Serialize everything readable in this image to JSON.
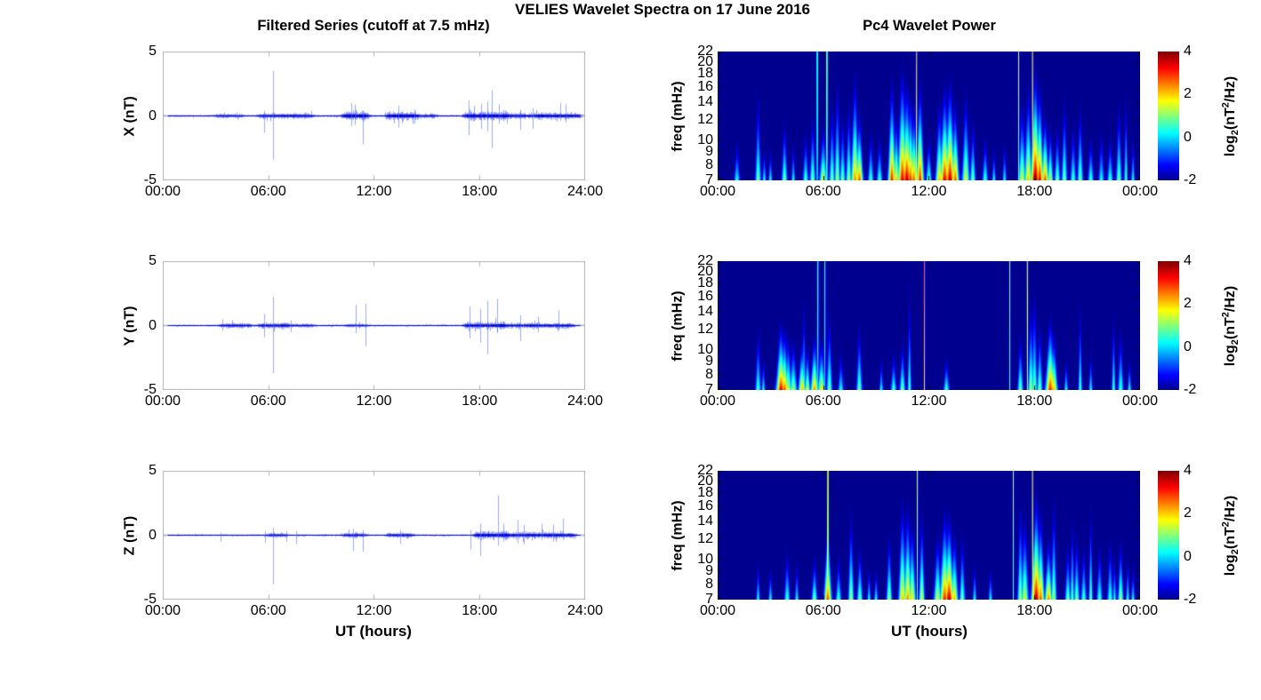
{
  "figure": {
    "title": "VELIES Wavelet Spectra on 17 June 2016",
    "left_title": "Filtered Series (cutoff at 7.5 mHz)",
    "right_title": "Pc4 Wavelet Power",
    "xlabel": "UT (hours)",
    "background": "#ffffff",
    "frame_color": "#b3b3b3",
    "tick_color": "#000000"
  },
  "colorbar": {
    "ticks": [
      "4",
      "2",
      "0",
      "-2"
    ],
    "tick_values": [
      4,
      2,
      0,
      -2
    ],
    "range": [
      -2,
      4
    ],
    "colormap": "jet",
    "label_parts": {
      "pre": "log",
      "sub": "2",
      "mid": "(nT",
      "sup": "2",
      "post": "/Hz)"
    }
  },
  "chart_data": [
    {
      "id": "ts-x",
      "type": "line",
      "row": 0,
      "ylabel": "X (nT)",
      "ylim": [
        -5,
        5
      ],
      "yticks": [
        "5",
        "0",
        "-5"
      ],
      "xticks": [
        "00:00",
        "06:00",
        "12:00",
        "18:00",
        "24:00"
      ],
      "x_range_hours": [
        0,
        24
      ],
      "line_color": "#0000ff",
      "noise_base": 0.07,
      "seed": 11,
      "noise_bursts": [
        [
          3.0,
          4.5,
          0.1
        ],
        [
          5.5,
          8.5,
          0.16
        ],
        [
          10.3,
          11.6,
          0.3
        ],
        [
          12.8,
          14.5,
          0.26
        ],
        [
          14.8,
          15.5,
          0.12
        ],
        [
          17.2,
          19.5,
          0.3
        ],
        [
          19.5,
          21.5,
          0.17
        ],
        [
          21.5,
          23.7,
          0.21
        ]
      ],
      "spikes": [
        [
          5.75,
          0.4,
          -1.3
        ],
        [
          6.25,
          3.5,
          -3.4
        ],
        [
          10.7,
          1.0,
          -0.8
        ],
        [
          10.9,
          0.9,
          -0.7
        ],
        [
          11.35,
          0.4,
          -2.2
        ],
        [
          13.4,
          0.8,
          -0.9
        ],
        [
          14.3,
          0.5,
          -0.6
        ],
        [
          17.4,
          1.2,
          -1.5
        ],
        [
          18.1,
          0.9,
          -1.0
        ],
        [
          18.45,
          1.1,
          -1.2
        ],
        [
          18.7,
          2.0,
          -2.5
        ],
        [
          19.1,
          0.9,
          -0.6
        ],
        [
          20.3,
          0.5,
          -1.1
        ],
        [
          21.0,
          0.6,
          -1.0
        ],
        [
          22.6,
          1.0,
          -0.4
        ],
        [
          22.9,
          0.9,
          -0.5
        ]
      ]
    },
    {
      "id": "spec-x",
      "type": "heatmap",
      "row": 0,
      "ylabel": "freq (mHz)",
      "yscale": "log",
      "ylim_mhz": [
        7,
        22
      ],
      "ytick_values": [
        22,
        20,
        18,
        16,
        14,
        12,
        10,
        9,
        8,
        7
      ],
      "xticks": [
        "00:00",
        "06:00",
        "12:00",
        "18:00",
        "00:00"
      ],
      "x_range_hours": [
        0,
        24
      ],
      "clim": [
        -2,
        4
      ],
      "colormap": "jet",
      "background": "#00008f",
      "events": [
        [
          1.1,
          0.35,
          0.4,
          3
        ],
        [
          2.3,
          0.78,
          0.5,
          3
        ],
        [
          2.65,
          0.3,
          0.4,
          2
        ],
        [
          3.0,
          0.3,
          0.4,
          2
        ],
        [
          3.8,
          0.55,
          0.5,
          3
        ],
        [
          4.3,
          0.35,
          0.4,
          2
        ],
        [
          5.0,
          0.45,
          0.45,
          3
        ],
        [
          5.4,
          0.6,
          0.5,
          3
        ],
        [
          6.0,
          0.5,
          0.6,
          4
        ],
        [
          6.5,
          0.7,
          0.5,
          3
        ],
        [
          6.8,
          0.9,
          0.55,
          3
        ],
        [
          7.1,
          0.6,
          0.5,
          3
        ],
        [
          7.45,
          0.7,
          0.55,
          3
        ],
        [
          7.8,
          0.95,
          0.75,
          4
        ],
        [
          8.05,
          0.6,
          0.8,
          4
        ],
        [
          8.7,
          0.45,
          0.45,
          3
        ],
        [
          9.2,
          0.4,
          0.45,
          3
        ],
        [
          9.9,
          0.9,
          0.85,
          4
        ],
        [
          10.15,
          0.6,
          0.7,
          3
        ],
        [
          10.5,
          1.0,
          0.9,
          5
        ],
        [
          10.75,
          0.85,
          0.95,
          5
        ],
        [
          10.95,
          0.75,
          0.85,
          4
        ],
        [
          11.15,
          0.65,
          0.8,
          4
        ],
        [
          11.5,
          0.9,
          0.85,
          4
        ],
        [
          12.0,
          0.4,
          0.5,
          3
        ],
        [
          12.6,
          0.7,
          0.7,
          4
        ],
        [
          12.9,
          0.85,
          0.9,
          5
        ],
        [
          13.2,
          0.9,
          0.95,
          5
        ],
        [
          13.5,
          0.7,
          0.8,
          4
        ],
        [
          14.1,
          0.8,
          0.6,
          4
        ],
        [
          14.5,
          0.55,
          0.5,
          3
        ],
        [
          15.2,
          0.4,
          0.45,
          3
        ],
        [
          15.7,
          0.3,
          0.4,
          2
        ],
        [
          16.3,
          0.35,
          0.4,
          2
        ],
        [
          17.3,
          0.7,
          0.6,
          4
        ],
        [
          17.65,
          0.85,
          0.7,
          4
        ],
        [
          18.05,
          1.0,
          1.0,
          5
        ],
        [
          18.3,
          0.85,
          0.9,
          4
        ],
        [
          18.6,
          0.6,
          0.8,
          4
        ],
        [
          18.9,
          0.5,
          0.6,
          3
        ],
        [
          19.3,
          0.5,
          0.5,
          3
        ],
        [
          19.7,
          0.75,
          0.5,
          3
        ],
        [
          20.2,
          0.5,
          0.45,
          3
        ],
        [
          20.6,
          0.7,
          0.5,
          3
        ],
        [
          21.2,
          0.4,
          0.45,
          3
        ],
        [
          21.8,
          0.45,
          0.4,
          3
        ],
        [
          22.3,
          0.4,
          0.45,
          3
        ],
        [
          22.8,
          0.7,
          0.5,
          3
        ],
        [
          23.2,
          0.8,
          0.45,
          2
        ],
        [
          23.6,
          0.4,
          0.4,
          2
        ]
      ],
      "vlines": [
        [
          5.66,
          0.6
        ],
        [
          6.21,
          0.7
        ],
        [
          11.3,
          0.75
        ],
        [
          17.1,
          0.6
        ],
        [
          17.9,
          0.85
        ]
      ]
    },
    {
      "id": "ts-y",
      "type": "line",
      "row": 1,
      "ylabel": "Y (nT)",
      "ylim": [
        -5,
        5
      ],
      "yticks": [
        "5",
        "0",
        "-5"
      ],
      "xticks": [
        "00:00",
        "06:00",
        "12:00",
        "18:00",
        "24:00"
      ],
      "x_range_hours": [
        0,
        24
      ],
      "line_color": "#0000ff",
      "noise_base": 0.06,
      "seed": 22,
      "noise_bursts": [
        [
          3.3,
          5.0,
          0.15
        ],
        [
          5.5,
          7.0,
          0.17
        ],
        [
          7.0,
          8.5,
          0.1
        ],
        [
          10.5,
          11.6,
          0.1
        ],
        [
          17.2,
          19.3,
          0.21
        ],
        [
          19.3,
          21.0,
          0.15
        ],
        [
          21.0,
          23.3,
          0.17
        ]
      ],
      "spikes": [
        [
          3.4,
          0.5,
          -0.4
        ],
        [
          5.75,
          0.9,
          -0.9
        ],
        [
          6.25,
          2.2,
          -3.7
        ],
        [
          7.3,
          0.4,
          -0.5
        ],
        [
          10.95,
          1.6,
          -0.6
        ],
        [
          11.5,
          1.7,
          -1.6
        ],
        [
          17.45,
          1.5,
          -1.0
        ],
        [
          18.05,
          1.3,
          -1.3
        ],
        [
          18.45,
          1.9,
          -2.2
        ],
        [
          19.0,
          2.1,
          -0.5
        ],
        [
          20.3,
          0.8,
          -1.2
        ],
        [
          21.3,
          0.7,
          -0.5
        ],
        [
          22.5,
          1.2,
          -0.4
        ]
      ]
    },
    {
      "id": "spec-y",
      "type": "heatmap",
      "row": 1,
      "ylabel": "freq (mHz)",
      "yscale": "log",
      "ylim_mhz": [
        7,
        22
      ],
      "ytick_values": [
        22,
        20,
        18,
        16,
        14,
        12,
        10,
        9,
        8,
        7
      ],
      "xticks": [
        "00:00",
        "06:00",
        "12:00",
        "18:00",
        "00:00"
      ],
      "x_range_hours": [
        0,
        24
      ],
      "clim": [
        -2,
        4
      ],
      "colormap": "jet",
      "background": "#00008f",
      "events": [
        [
          2.3,
          0.55,
          0.45,
          3
        ],
        [
          2.6,
          0.3,
          0.4,
          2
        ],
        [
          3.6,
          0.6,
          0.9,
          5
        ],
        [
          3.8,
          0.55,
          0.8,
          4
        ],
        [
          4.0,
          0.5,
          0.6,
          4
        ],
        [
          4.3,
          0.45,
          0.55,
          4
        ],
        [
          4.8,
          0.45,
          0.7,
          4
        ],
        [
          4.9,
          0.85,
          0.45,
          2
        ],
        [
          5.1,
          0.4,
          0.6,
          3
        ],
        [
          5.5,
          0.5,
          0.75,
          4
        ],
        [
          5.9,
          0.45,
          0.65,
          4
        ],
        [
          6.35,
          0.7,
          0.5,
          3
        ],
        [
          7.0,
          0.35,
          0.4,
          3
        ],
        [
          8.05,
          0.6,
          0.5,
          3
        ],
        [
          9.3,
          0.3,
          0.4,
          2
        ],
        [
          10.0,
          0.35,
          0.45,
          3
        ],
        [
          10.5,
          0.45,
          0.5,
          3
        ],
        [
          10.9,
          0.9,
          0.45,
          2
        ],
        [
          13.0,
          0.3,
          0.45,
          3
        ],
        [
          17.2,
          0.5,
          0.5,
          3
        ],
        [
          17.8,
          0.8,
          0.55,
          3
        ],
        [
          18.0,
          0.9,
          0.5,
          3
        ],
        [
          18.3,
          0.6,
          0.5,
          3
        ],
        [
          18.9,
          0.65,
          0.85,
          5
        ],
        [
          19.1,
          0.5,
          0.7,
          4
        ],
        [
          19.8,
          0.3,
          0.4,
          2
        ],
        [
          20.6,
          0.8,
          0.45,
          2
        ],
        [
          21.2,
          0.35,
          0.4,
          2
        ],
        [
          22.5,
          0.7,
          0.45,
          2
        ],
        [
          22.9,
          0.55,
          0.45,
          3
        ],
        [
          23.4,
          0.3,
          0.4,
          2
        ]
      ],
      "vlines": [
        [
          5.7,
          0.5
        ],
        [
          6.1,
          0.45
        ],
        [
          11.75,
          0.8
        ],
        [
          16.6,
          0.55
        ],
        [
          17.6,
          0.7
        ]
      ]
    },
    {
      "id": "ts-z",
      "type": "line",
      "row": 2,
      "ylabel": "Z (nT)",
      "ylim": [
        -5,
        5
      ],
      "yticks": [
        "5",
        "0",
        "-5"
      ],
      "xticks": [
        "00:00",
        "06:00",
        "12:00",
        "18:00",
        "24:00"
      ],
      "x_range_hours": [
        0,
        24
      ],
      "line_color": "#0000ff",
      "noise_base": 0.06,
      "seed": 33,
      "noise_bursts": [
        [
          6.0,
          7.0,
          0.12
        ],
        [
          10.3,
          11.5,
          0.15
        ],
        [
          12.8,
          14.2,
          0.15
        ],
        [
          17.8,
          19.5,
          0.25
        ],
        [
          19.5,
          23.4,
          0.21
        ]
      ],
      "spikes": [
        [
          3.3,
          0.2,
          -0.5
        ],
        [
          5.8,
          0.3,
          -0.6
        ],
        [
          6.25,
          0.6,
          -3.8
        ],
        [
          7.0,
          0.3,
          -0.5
        ],
        [
          7.6,
          0.3,
          -0.7
        ],
        [
          10.8,
          0.5,
          -1.2
        ],
        [
          11.35,
          0.4,
          -1.3
        ],
        [
          13.5,
          0.4,
          -0.7
        ],
        [
          17.5,
          0.4,
          -1.1
        ],
        [
          18.05,
          0.9,
          -1.6
        ],
        [
          19.05,
          3.1,
          -0.8
        ],
        [
          19.35,
          0.9,
          -0.5
        ],
        [
          20.15,
          1.2,
          -0.6
        ],
        [
          20.5,
          0.8,
          -0.7
        ],
        [
          21.5,
          0.9,
          -0.4
        ],
        [
          22.2,
          0.8,
          -0.5
        ],
        [
          22.75,
          1.3,
          -0.4
        ]
      ]
    },
    {
      "id": "spec-z",
      "type": "heatmap",
      "row": 2,
      "ylabel": "freq (mHz)",
      "yscale": "log",
      "ylim_mhz": [
        7,
        22
      ],
      "ytick_values": [
        22,
        20,
        18,
        16,
        14,
        12,
        10,
        9,
        8,
        7
      ],
      "xticks": [
        "00:00",
        "06:00",
        "12:00",
        "18:00",
        "00:00"
      ],
      "x_range_hours": [
        0,
        24
      ],
      "clim": [
        -2,
        4
      ],
      "colormap": "jet",
      "background": "#00008f",
      "events": [
        [
          2.3,
          0.35,
          0.4,
          2
        ],
        [
          3.0,
          0.3,
          0.4,
          2
        ],
        [
          3.95,
          0.45,
          0.45,
          3
        ],
        [
          4.5,
          0.35,
          0.4,
          2
        ],
        [
          5.5,
          0.4,
          0.5,
          3
        ],
        [
          6.26,
          0.7,
          0.8,
          4
        ],
        [
          6.87,
          0.4,
          0.45,
          3
        ],
        [
          7.58,
          0.8,
          0.55,
          3
        ],
        [
          8.08,
          0.5,
          0.5,
          3
        ],
        [
          8.6,
          0.3,
          0.4,
          2
        ],
        [
          9.0,
          0.3,
          0.4,
          2
        ],
        [
          9.75,
          0.6,
          0.55,
          3
        ],
        [
          10.5,
          0.9,
          0.7,
          4
        ],
        [
          10.8,
          0.85,
          0.75,
          4
        ],
        [
          11.05,
          0.7,
          0.65,
          4
        ],
        [
          11.6,
          0.8,
          0.6,
          3
        ],
        [
          12.5,
          0.6,
          0.6,
          4
        ],
        [
          12.9,
          0.8,
          0.85,
          5
        ],
        [
          13.15,
          0.75,
          0.95,
          5
        ],
        [
          13.45,
          0.6,
          0.7,
          4
        ],
        [
          13.9,
          0.6,
          0.5,
          3
        ],
        [
          14.6,
          0.35,
          0.4,
          2
        ],
        [
          15.5,
          0.3,
          0.4,
          2
        ],
        [
          17.2,
          0.9,
          0.55,
          3
        ],
        [
          17.45,
          0.75,
          0.6,
          4
        ],
        [
          18.1,
          0.95,
          0.95,
          5
        ],
        [
          18.35,
          0.8,
          0.8,
          4
        ],
        [
          18.8,
          0.55,
          0.75,
          4
        ],
        [
          19.1,
          0.9,
          0.55,
          3
        ],
        [
          19.9,
          0.5,
          0.5,
          3
        ],
        [
          20.15,
          0.75,
          0.5,
          2
        ],
        [
          20.4,
          0.6,
          0.5,
          3
        ],
        [
          20.8,
          0.5,
          0.45,
          3
        ],
        [
          21.2,
          0.85,
          0.5,
          2
        ],
        [
          21.7,
          0.5,
          0.45,
          3
        ],
        [
          22.3,
          0.55,
          0.45,
          3
        ],
        [
          22.55,
          0.4,
          0.4,
          2
        ],
        [
          22.9,
          0.55,
          0.55,
          3
        ],
        [
          23.3,
          0.4,
          0.4,
          2
        ],
        [
          23.6,
          0.3,
          0.4,
          2
        ]
      ],
      "vlines": [
        [
          6.26,
          0.95
        ],
        [
          11.35,
          0.6
        ],
        [
          16.8,
          0.55
        ],
        [
          17.9,
          0.85
        ]
      ]
    }
  ]
}
